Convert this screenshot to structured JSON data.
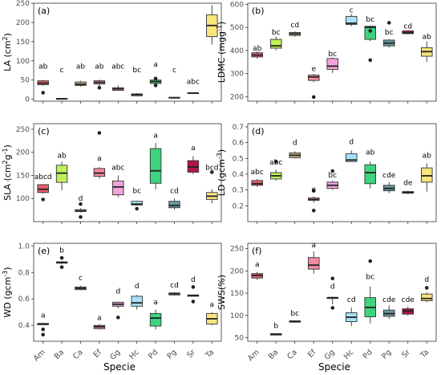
{
  "species": [
    "Am",
    "Ba",
    "Ca",
    "Ef",
    "Gg",
    "Hc",
    "Pd",
    "Pg",
    "Sr",
    "Ta"
  ],
  "colors": [
    "#ea5e6e",
    "#bff05a",
    "#c9b48b",
    "#f48aa0",
    "#f4a3df",
    "#a8e2f6",
    "#3ed47e",
    "#6b9a9f",
    "#b2144f",
    "#f8e57c"
  ],
  "xlabel": "Specie",
  "chart_data": [
    {
      "type": "box",
      "label": "(a)",
      "ylabel": "LA (cm",
      "ylabel_sup": "2",
      "ylabel_tail": ")",
      "ylim": [
        -5,
        250
      ],
      "yticks": [
        0,
        50,
        100,
        150,
        200,
        250
      ],
      "boxes": [
        {
          "lw": 35,
          "q1": 38,
          "med": 42,
          "q3": 48,
          "hw": 50,
          "out": [
            17
          ]
        },
        {
          "lw": 0.5,
          "q1": 1,
          "med": 1.5,
          "q3": 2,
          "hw": 2.5,
          "out": []
        },
        {
          "lw": 33,
          "q1": 36,
          "med": 39,
          "q3": 45,
          "hw": 48,
          "out": []
        },
        {
          "lw": 33,
          "q1": 40,
          "med": 44,
          "q3": 48,
          "hw": 51,
          "out": [
            30
          ]
        },
        {
          "lw": 22,
          "q1": 23,
          "med": 27,
          "q3": 30,
          "hw": 36,
          "out": []
        },
        {
          "lw": 8,
          "q1": 9,
          "med": 12,
          "q3": 14,
          "hw": 16,
          "out": []
        },
        {
          "lw": 36,
          "q1": 41,
          "med": 46,
          "q3": 50,
          "hw": 56,
          "out": [
            36,
            54
          ]
        },
        {
          "lw": 2,
          "q1": 3,
          "med": 4,
          "q3": 5,
          "hw": 5.5,
          "out": []
        },
        {
          "lw": 14,
          "q1": 15,
          "med": 16,
          "q3": 17,
          "hw": 18,
          "out": []
        },
        {
          "lw": 142,
          "q1": 163,
          "med": 192,
          "q3": 220,
          "hw": 245,
          "out": []
        }
      ],
      "letters": [
        "ab",
        "c",
        "ab",
        "ab",
        "abc",
        "bc",
        "a",
        "c",
        "abc",
        "d"
      ],
      "letter_y": [
        80,
        70,
        80,
        80,
        80,
        70,
        85,
        70,
        40,
        262
      ]
    },
    {
      "type": "box",
      "label": "(b)",
      "ylabel": "LDMC (mgg",
      "ylabel_sup": "-1",
      "ylabel_tail": ")",
      "ylim": [
        180,
        605
      ],
      "yticks": [
        200,
        300,
        400,
        500,
        600
      ],
      "boxes": [
        {
          "lw": 365,
          "q1": 372,
          "med": 380,
          "q3": 390,
          "hw": 396,
          "out": []
        },
        {
          "lw": 400,
          "q1": 410,
          "med": 420,
          "q3": 448,
          "hw": 460,
          "out": []
        },
        {
          "lw": 460,
          "q1": 465,
          "med": 472,
          "q3": 478,
          "hw": 483,
          "out": []
        },
        {
          "lw": 262,
          "q1": 270,
          "med": 285,
          "q3": 293,
          "hw": 298,
          "out": [
            198
          ]
        },
        {
          "lw": 302,
          "q1": 318,
          "med": 332,
          "q3": 365,
          "hw": 370,
          "out": []
        },
        {
          "lw": 505,
          "q1": 513,
          "med": 518,
          "q3": 548,
          "hw": 558,
          "out": []
        },
        {
          "lw": 440,
          "q1": 448,
          "med": 500,
          "q3": 505,
          "hw": 508,
          "out": [
            358,
            485
          ]
        },
        {
          "lw": 412,
          "q1": 420,
          "med": 432,
          "q3": 445,
          "hw": 450,
          "out": [
            520
          ]
        },
        {
          "lw": 470,
          "q1": 473,
          "med": 477,
          "q3": 485,
          "hw": 488,
          "out": []
        },
        {
          "lw": 350,
          "q1": 375,
          "med": 395,
          "q3": 412,
          "hw": 440,
          "out": []
        }
      ],
      "letters": [
        "ab",
        "bc",
        "cd",
        "e",
        "bc",
        "c",
        "bc",
        "bc",
        "cd",
        "ab"
      ],
      "letter_y": [
        400,
        470,
        500,
        310,
        375,
        565,
        525,
        470,
        495,
        450
      ]
    },
    {
      "type": "box",
      "label": "(c)",
      "ylabel": "SLA (cm",
      "ylabel_sup": "2",
      "ylabel_mid": "g",
      "ylabel_sup2": "-1",
      "ylabel_tail": ")",
      "ylim": [
        50,
        262
      ],
      "yticks": [
        100,
        150,
        200,
        250
      ],
      "boxes": [
        {
          "lw": 110,
          "q1": 113,
          "med": 120,
          "q3": 130,
          "hw": 131,
          "out": [
            98
          ]
        },
        {
          "lw": 118,
          "q1": 135,
          "med": 155,
          "q3": 172,
          "hw": 180,
          "out": []
        },
        {
          "lw": 70,
          "q1": 72,
          "med": 73,
          "q3": 76,
          "hw": 79,
          "out": [
            88,
            60
          ]
        },
        {
          "lw": 143,
          "q1": 148,
          "med": 155,
          "q3": 165,
          "hw": 168,
          "out": [
            242
          ]
        },
        {
          "lw": 103,
          "q1": 108,
          "med": 125,
          "q3": 138,
          "hw": 150,
          "out": []
        },
        {
          "lw": 85,
          "q1": 86,
          "med": 88,
          "q3": 94,
          "hw": 95,
          "out": [
            78
          ]
        },
        {
          "lw": 120,
          "q1": 133,
          "med": 160,
          "q3": 208,
          "hw": 220,
          "out": []
        },
        {
          "lw": 76,
          "q1": 80,
          "med": 85,
          "q3": 94,
          "hw": 100,
          "out": []
        },
        {
          "lw": 153,
          "q1": 157,
          "med": 168,
          "q3": 182,
          "hw": 192,
          "out": []
        },
        {
          "lw": 90,
          "q1": 98,
          "med": 105,
          "q3": 113,
          "hw": 120,
          "out": [
            157
          ]
        }
      ],
      "letters": [
        "abcd",
        "ab",
        "d",
        "a",
        "abc",
        "bc",
        "a",
        "cd",
        "a",
        "bcd"
      ],
      "letter_y": [
        142,
        188,
        95,
        182,
        162,
        112,
        232,
        112,
        205,
        162
      ]
    },
    {
      "type": "box",
      "label": "(d)",
      "ylabel": "LD (gcm",
      "ylabel_sup": "-3",
      "ylabel_tail": ")",
      "ylim": [
        0.1,
        0.72
      ],
      "yticks": [
        0.2,
        0.3,
        0.4,
        0.5,
        0.6,
        0.7
      ],
      "boxes": [
        {
          "lw": 0.32,
          "q1": 0.33,
          "med": 0.34,
          "q3": 0.36,
          "hw": 0.37,
          "out": []
        },
        {
          "lw": 0.36,
          "q1": 0.37,
          "med": 0.39,
          "q3": 0.41,
          "hw": 0.43,
          "out": [
            0.48
          ]
        },
        {
          "lw": 0.5,
          "q1": 0.505,
          "med": 0.52,
          "q3": 0.535,
          "hw": 0.545,
          "out": []
        },
        {
          "lw": 0.22,
          "q1": 0.235,
          "med": 0.24,
          "q3": 0.25,
          "hw": 0.26,
          "out": [
            0.295,
            0.17
          ]
        },
        {
          "lw": 0.3,
          "q1": 0.31,
          "med": 0.33,
          "q3": 0.35,
          "hw": 0.36,
          "out": [
            0.42
          ]
        },
        {
          "lw": 0.48,
          "q1": 0.48,
          "med": 0.49,
          "q3": 0.53,
          "hw": 0.55,
          "out": []
        },
        {
          "lw": 0.31,
          "q1": 0.34,
          "med": 0.41,
          "q3": 0.46,
          "hw": 0.48,
          "out": []
        },
        {
          "lw": 0.28,
          "q1": 0.295,
          "med": 0.31,
          "q3": 0.33,
          "hw": 0.35,
          "out": []
        },
        {
          "lw": 0.275,
          "q1": 0.28,
          "med": 0.285,
          "q3": 0.29,
          "hw": 0.295,
          "out": []
        },
        {
          "lw": 0.29,
          "q1": 0.35,
          "med": 0.39,
          "q3": 0.44,
          "hw": 0.47,
          "out": []
        }
      ],
      "letters": [
        "abc",
        "abc",
        "d",
        "e",
        "bc",
        "d",
        "ab",
        "cde",
        "de",
        "ab"
      ],
      "letter_y": [
        0.4,
        0.46,
        0.585,
        0.29,
        0.38,
        0.59,
        0.525,
        0.38,
        0.33,
        0.505
      ]
    },
    {
      "type": "box",
      "label": "(e)",
      "ylabel": "WD (gcm",
      "ylabel_sup": "-3",
      "ylabel_tail": ")",
      "ylim": [
        0.28,
        1.02
      ],
      "yticks": [
        0.4,
        0.6,
        0.8,
        1.0
      ],
      "boxes": [
        {
          "lw": 0.405,
          "q1": 0.405,
          "med": 0.41,
          "q3": 0.415,
          "hw": 0.42,
          "out": [
            0.33,
            0.37
          ]
        },
        {
          "lw": 0.865,
          "q1": 0.87,
          "med": 0.875,
          "q3": 0.88,
          "hw": 0.885,
          "out": [
            0.84,
            0.91
          ]
        },
        {
          "lw": 0.665,
          "q1": 0.67,
          "med": 0.68,
          "q3": 0.69,
          "hw": 0.7,
          "out": []
        },
        {
          "lw": 0.37,
          "q1": 0.375,
          "med": 0.39,
          "q3": 0.4,
          "hw": 0.41,
          "out": []
        },
        {
          "lw": 0.53,
          "q1": 0.545,
          "med": 0.56,
          "q3": 0.575,
          "hw": 0.58,
          "out": [
            0.46
          ]
        },
        {
          "lw": 0.52,
          "q1": 0.545,
          "med": 0.57,
          "q3": 0.62,
          "hw": 0.63,
          "out": []
        },
        {
          "lw": 0.37,
          "q1": 0.395,
          "med": 0.455,
          "q3": 0.49,
          "hw": 0.52,
          "out": []
        },
        {
          "lw": 0.625,
          "q1": 0.63,
          "med": 0.64,
          "q3": 0.645,
          "hw": 0.65,
          "out": []
        },
        {
          "lw": 0.62,
          "q1": 0.62,
          "med": 0.625,
          "q3": 0.63,
          "hw": 0.63,
          "out": [
            0.58,
            0.69
          ]
        },
        {
          "lw": 0.4,
          "q1": 0.41,
          "med": 0.45,
          "q3": 0.49,
          "hw": 0.5,
          "out": []
        }
      ],
      "letters": [
        "a",
        "b",
        "c",
        "a",
        "d",
        "d",
        "a",
        "cd",
        "d",
        "a"
      ],
      "letter_y": [
        0.46,
        0.95,
        0.74,
        0.44,
        0.64,
        0.68,
        0.56,
        0.685,
        0.73,
        0.54
      ]
    },
    {
      "type": "box",
      "label": "(f)",
      "ylabel": "SWS(%)",
      "ylabel_sup": "",
      "ylabel_tail": "",
      "ylim": [
        42,
        262
      ],
      "yticks": [
        50,
        100,
        150,
        200,
        250
      ],
      "boxes": [
        {
          "lw": 180,
          "q1": 184,
          "med": 190,
          "q3": 194,
          "hw": 198,
          "out": []
        },
        {
          "lw": 55,
          "q1": 56,
          "med": 58,
          "q3": 59,
          "hw": 60,
          "out": []
        },
        {
          "lw": 84,
          "q1": 85,
          "med": 86,
          "q3": 88,
          "hw": 89,
          "out": []
        },
        {
          "lw": 194,
          "q1": 204,
          "med": 213,
          "q3": 230,
          "hw": 244,
          "out": []
        },
        {
          "lw": 125,
          "q1": 138,
          "med": 140,
          "q3": 140,
          "hw": 142,
          "out": [
            183,
            117
          ]
        },
        {
          "lw": 76,
          "q1": 86,
          "med": 96,
          "q3": 106,
          "hw": 118,
          "out": []
        },
        {
          "lw": 82,
          "q1": 97,
          "med": 118,
          "q3": 140,
          "hw": 165,
          "out": [
            222
          ]
        },
        {
          "lw": 92,
          "q1": 98,
          "med": 104,
          "q3": 112,
          "hw": 123,
          "out": []
        },
        {
          "lw": 100,
          "q1": 103,
          "med": 110,
          "q3": 115,
          "hw": 120,
          "out": []
        },
        {
          "lw": 130,
          "q1": 133,
          "med": 138,
          "q3": 148,
          "hw": 152,
          "out": [
            162
          ]
        }
      ],
      "letters": [
        "a",
        "b",
        "bc",
        "a",
        "d",
        "cd",
        "bc",
        "cde",
        "cde",
        "d"
      ],
      "letter_y": [
        210,
        72,
        100,
        253,
        160,
        130,
        182,
        130,
        130,
        175
      ]
    }
  ]
}
